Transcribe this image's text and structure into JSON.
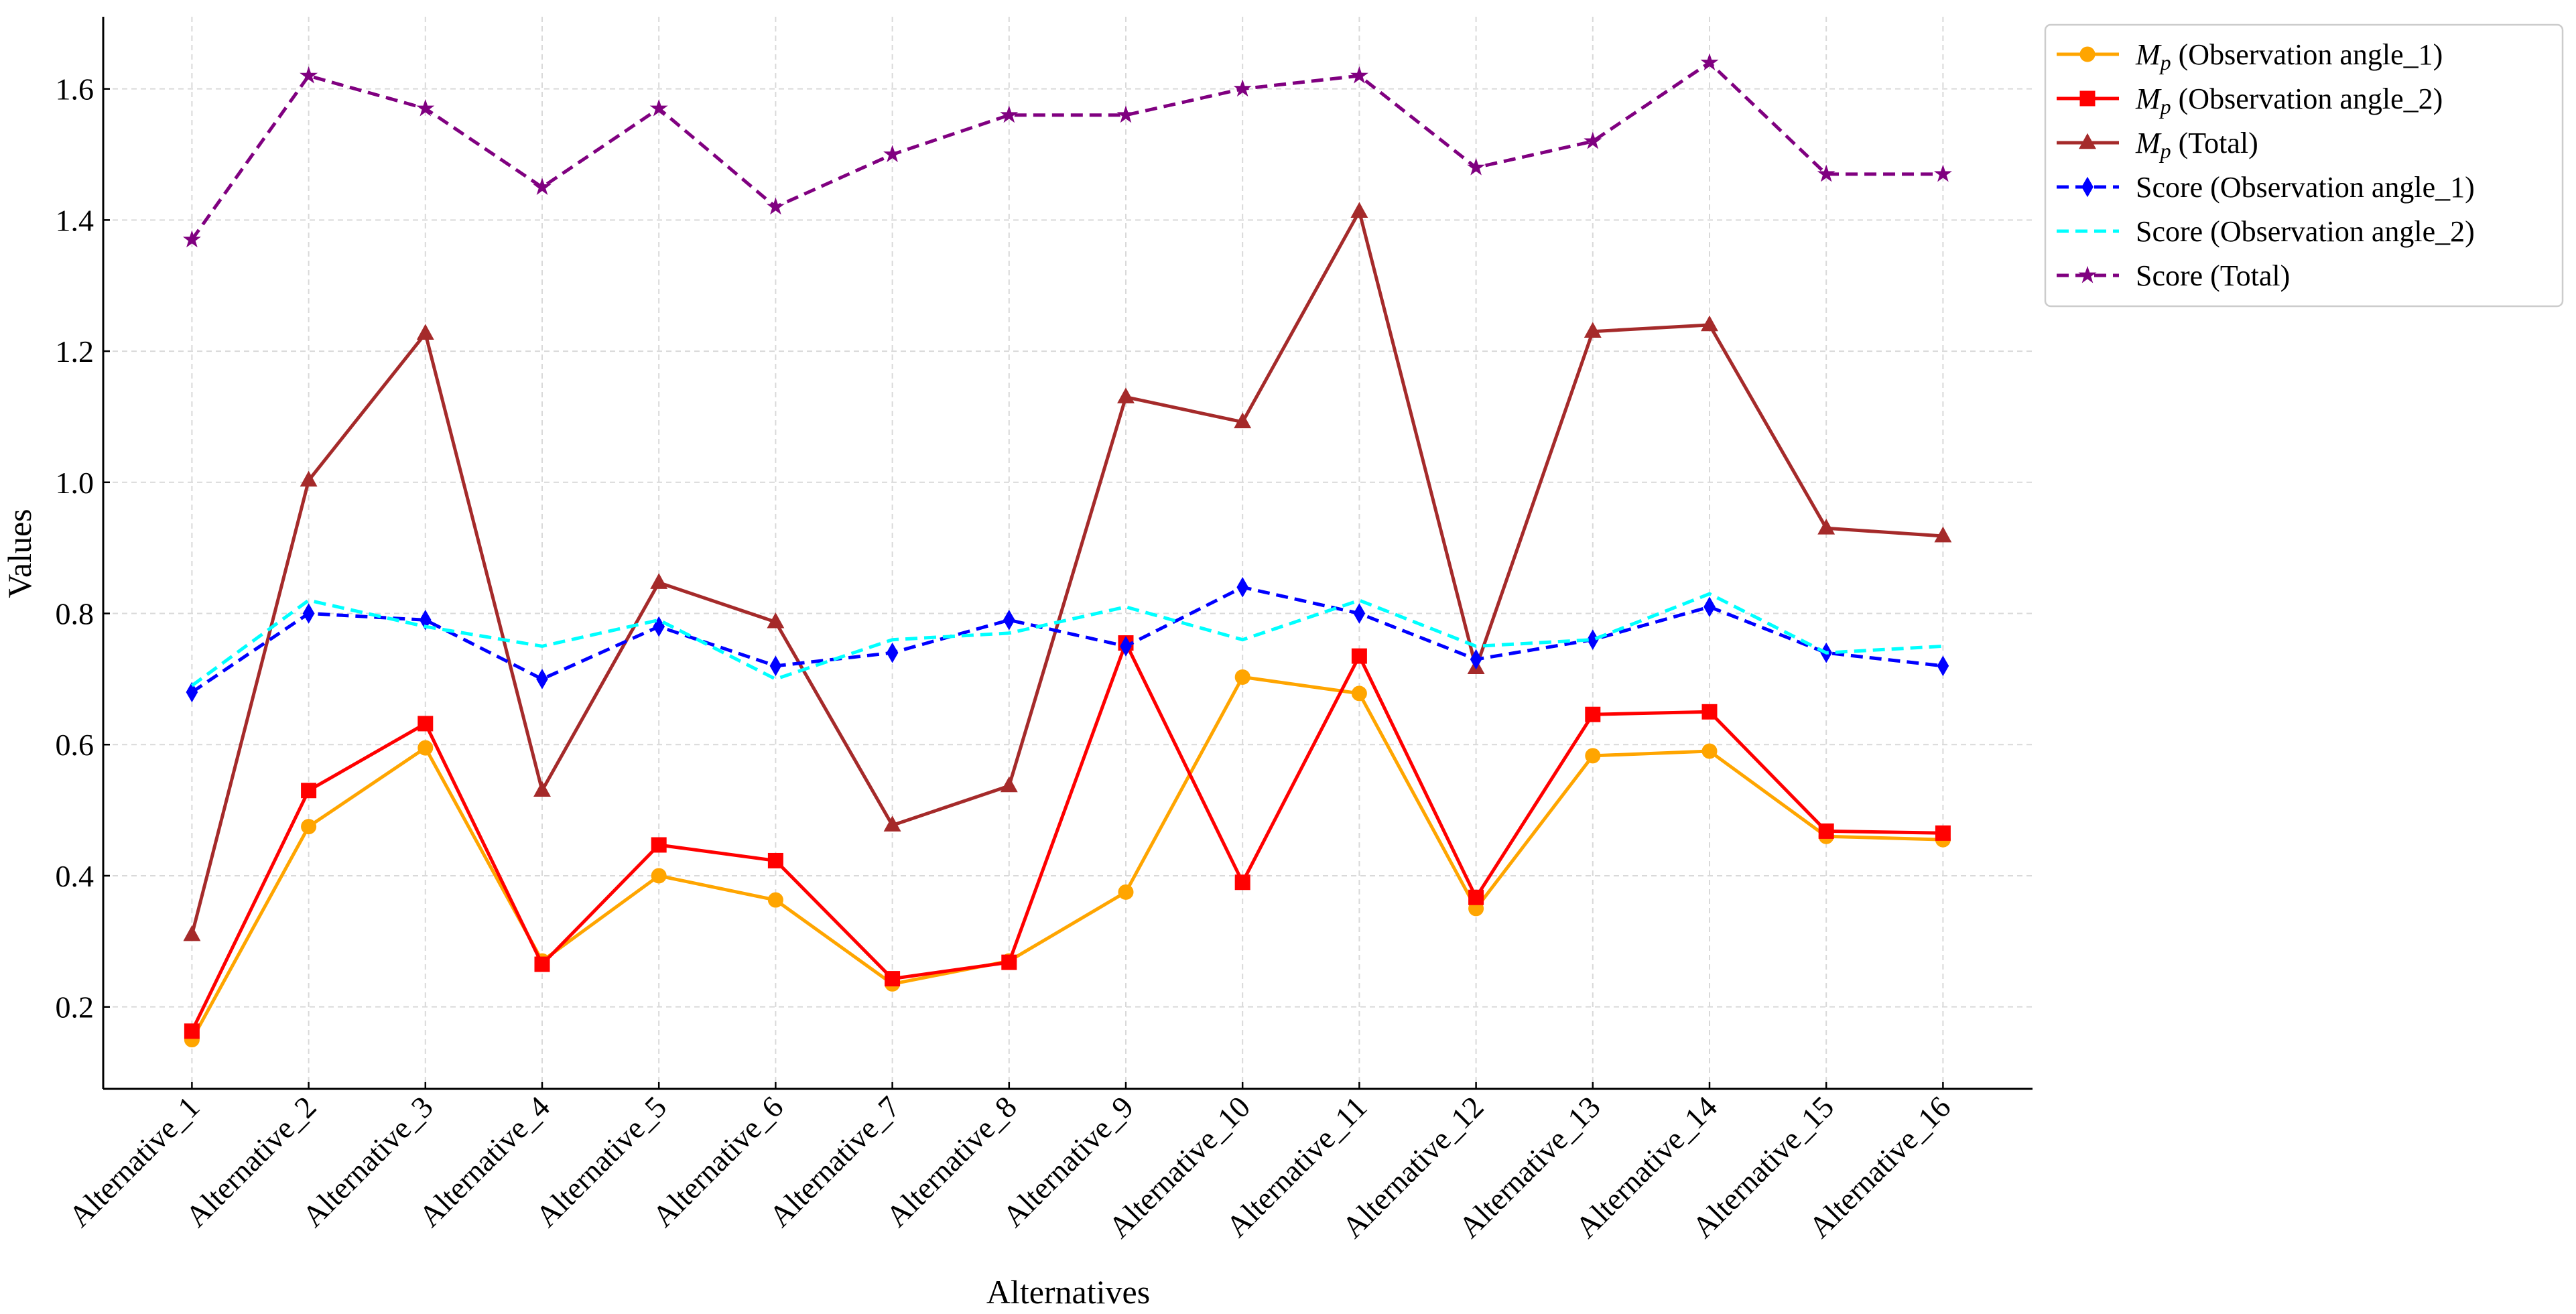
{
  "chart_data": {
    "type": "line",
    "x_label": "Alternatives",
    "y_label": "Values",
    "categories": [
      "Alternative_1",
      "Alternative_2",
      "Alternative_3",
      "Alternative_4",
      "Alternative_5",
      "Alternative_6",
      "Alternative_7",
      "Alternative_8",
      "Alternative_9",
      "Alternative_10",
      "Alternative_11",
      "Alternative_12",
      "Alternative_13",
      "Alternative_14",
      "Alternative_15",
      "Alternative_16"
    ],
    "ylim": [
      0.075,
      1.71
    ],
    "yticks": [
      0.2,
      0.4,
      0.6,
      0.8,
      {
        "value": 1,
        "label": "1.0"
      },
      1.2,
      1.4,
      1.6
    ],
    "grid": true,
    "legend": "outside-upper-right",
    "series": [
      {
        "name": "Mp (Observation angle_1)",
        "color": "#ffa500",
        "marker": "circle",
        "dashed": false,
        "values": [
          0.15,
          0.475,
          0.595,
          0.27,
          0.4,
          0.363,
          0.235,
          0.27,
          0.375,
          0.703,
          0.678,
          0.35,
          0.583,
          0.59,
          0.46,
          0.455
        ]
      },
      {
        "name": "Mp (Observation angle_2)",
        "color": "#ff0000",
        "marker": "square",
        "dashed": false,
        "values": [
          0.163,
          0.53,
          0.632,
          0.265,
          0.447,
          0.423,
          0.243,
          0.268,
          0.755,
          0.39,
          0.735,
          0.367,
          0.646,
          0.65,
          0.468,
          0.465
        ]
      },
      {
        "name": "Mp (Total)",
        "color": "#a52a2a",
        "marker": "triangle",
        "dashed": false,
        "values": [
          0.31,
          1.003,
          1.227,
          0.53,
          0.847,
          0.787,
          0.477,
          0.537,
          1.13,
          1.092,
          1.413,
          0.717,
          1.23,
          1.24,
          0.93,
          0.918
        ]
      },
      {
        "name": "Score (Observation angle_1)",
        "color": "#0000ff",
        "marker": "diamond",
        "dashed": true,
        "values": [
          0.68,
          0.8,
          0.79,
          0.7,
          0.78,
          0.72,
          0.74,
          0.79,
          0.75,
          0.84,
          0.8,
          0.73,
          0.76,
          0.81,
          0.74,
          0.72
        ]
      },
      {
        "name": "Score (Observation angle_2)",
        "color": "#00ffff",
        "marker": "none",
        "dashed": true,
        "values": [
          0.69,
          0.82,
          0.78,
          0.75,
          0.79,
          0.7,
          0.76,
          0.77,
          0.81,
          0.76,
          0.82,
          0.75,
          0.76,
          0.83,
          0.74,
          0.75
        ]
      },
      {
        "name": "Score (Total)",
        "color": "#800080",
        "marker": "star",
        "dashed": true,
        "values": [
          1.37,
          1.62,
          1.57,
          1.45,
          1.57,
          1.42,
          1.5,
          1.56,
          1.56,
          1.6,
          1.62,
          1.48,
          1.52,
          1.64,
          1.47,
          1.47
        ]
      }
    ]
  }
}
